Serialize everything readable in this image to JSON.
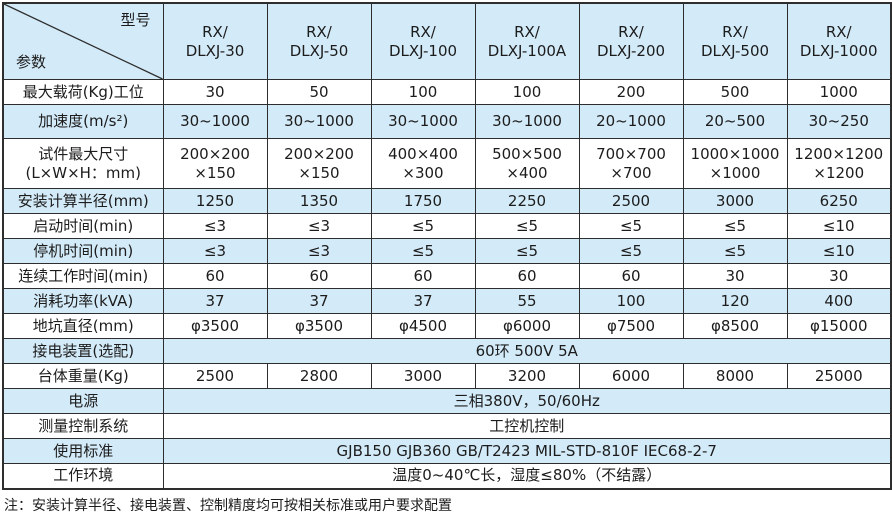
{
  "colors": {
    "row_shade": "#d3eaf8",
    "border": "#2e2e2e",
    "text": "#1c1c1c",
    "background": "#ffffff"
  },
  "table": {
    "corner": {
      "top": "型号",
      "bottom": "参数"
    },
    "columns": [
      "RX/\nDLXJ-30",
      "RX/\nDLXJ-50",
      "RX/\nDLXJ-100",
      "RX/\nDLXJ-100A",
      "RX/\nDLXJ-200",
      "RX/\nDLXJ-500",
      "RX/\nDLXJ-1000"
    ],
    "rows": [
      {
        "label": "最大载荷(Kg)工位",
        "values": [
          "30",
          "50",
          "100",
          "100",
          "200",
          "500",
          "1000"
        ]
      },
      {
        "label": "加速度(m/s²)",
        "values": [
          "30~1000",
          "30~1000",
          "30~1000",
          "30~1000",
          "20~1000",
          "20~500",
          "30~250"
        ]
      },
      {
        "label": "试件最大尺寸\n(L×W×H：mm)",
        "values": [
          "200×200\n×150",
          "200×200\n×150",
          "400×400\n×300",
          "500×500\n×400",
          "700×700\n×700",
          "1000×1000\n×1000",
          "1200×1200\n×1200"
        ]
      },
      {
        "label": "安装计算半径(mm)",
        "values": [
          "1250",
          "1350",
          "1750",
          "2250",
          "2500",
          "3000",
          "6250"
        ]
      },
      {
        "label": "启动时间(min)",
        "values": [
          "≤3",
          "≤3",
          "≤5",
          "≤5",
          "≤5",
          "≤5",
          "≤10"
        ]
      },
      {
        "label": "停机时间(min)",
        "values": [
          "≤3",
          "≤3",
          "≤5",
          "≤5",
          "≤5",
          "≤5",
          "≤10"
        ]
      },
      {
        "label": "连续工作时间(min)",
        "values": [
          "60",
          "60",
          "60",
          "60",
          "60",
          "30",
          "30"
        ]
      },
      {
        "label": "消耗功率(kVA)",
        "values": [
          "37",
          "37",
          "37",
          "55",
          "100",
          "120",
          "400"
        ]
      },
      {
        "label": "地坑直径(mm)",
        "values": [
          "φ3500",
          "φ3500",
          "φ4500",
          "φ6000",
          "φ7500",
          "φ8500",
          "φ15000"
        ]
      },
      {
        "label": "接电装置(选配)",
        "span": "60环  500V  5A"
      },
      {
        "label": "台体重量(Kg)",
        "values": [
          "2500",
          "2800",
          "3000",
          "3200",
          "6000",
          "8000",
          "25000"
        ]
      },
      {
        "label": "电源",
        "span": "三相380V，50/60Hz"
      },
      {
        "label": "测量控制系统",
        "span": "工控机控制"
      },
      {
        "label": "使用标准",
        "span": "GJB150  GJB360 GB/T2423  MIL-STD-810F  IEC68-2-7"
      },
      {
        "label": "工作环境",
        "span": "温度0~40℃长，湿度≤80%（不结露）"
      }
    ],
    "note": "注：安装计算半径、接电装置、控制精度均可按相关标准或用户要求配置"
  }
}
